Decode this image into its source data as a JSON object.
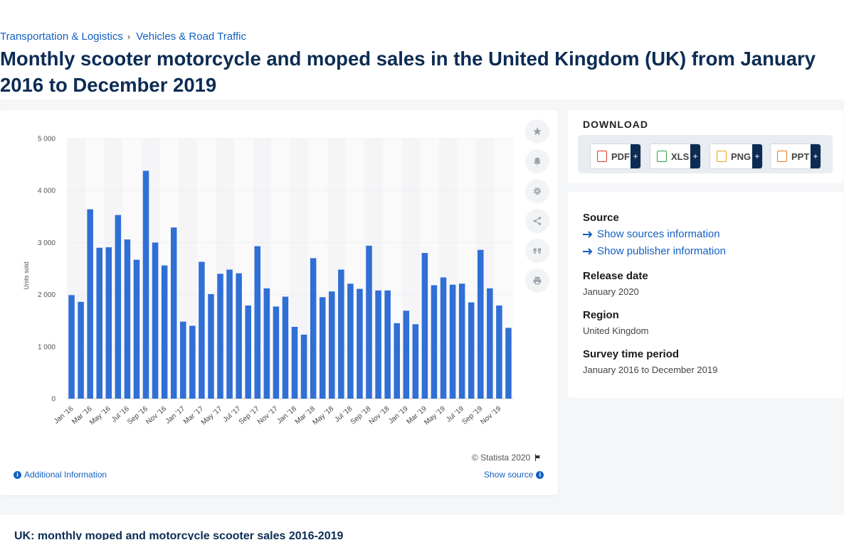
{
  "breadcrumb": {
    "items": [
      "Transportation & Logistics",
      "Vehicles & Road Traffic"
    ],
    "separator": "›"
  },
  "page": {
    "title": "Monthly scooter motorcycle and moped sales in the United Kingdom (UK) from January 2016 to December 2019"
  },
  "chart_data": {
    "type": "bar",
    "title": "",
    "ylabel": "Units sold",
    "xlabel": "",
    "ylim": [
      0,
      5000
    ],
    "yticks": [
      0,
      1000,
      2000,
      3000,
      4000,
      5000
    ],
    "ytick_labels": [
      "0",
      "1 000",
      "2 000",
      "3 000",
      "4 000",
      "5 000"
    ],
    "grid": true,
    "color": "#2f6fd6",
    "categories": [
      "Jan '16",
      "Feb '16",
      "Mar '16",
      "Apr '16",
      "May '16",
      "Jun '16",
      "Jul '16",
      "Aug '16",
      "Sep '16",
      "Oct '16",
      "Nov '16",
      "Dec '16",
      "Jan '17",
      "Feb '17",
      "Mar '17",
      "Apr '17",
      "May '17",
      "Jun '17",
      "Jul '17",
      "Aug '17",
      "Sep '17",
      "Oct '17",
      "Nov '17",
      "Dec '17",
      "Jan '18",
      "Feb '18",
      "Mar '18",
      "Apr '18",
      "May '18",
      "Jun '18",
      "Jul '18",
      "Aug '18",
      "Sep '18",
      "Oct '18",
      "Nov '18",
      "Dec '18",
      "Jan '19",
      "Feb '19",
      "Mar '19",
      "Apr '19",
      "May '19",
      "Jun '19",
      "Jul '19",
      "Aug '19",
      "Sep '19",
      "Oct '19",
      "Nov '19",
      "Dec '19"
    ],
    "tick_labels_shown": [
      "Jan '16",
      "Mar '16",
      "May '16",
      "Jul '16",
      "Sep '16",
      "Nov '16",
      "Jan '17",
      "Mar '17",
      "May '17",
      "Jul '17",
      "Sep '17",
      "Nov '17",
      "Jan '18",
      "Mar '18",
      "May '18",
      "Jul '18",
      "Sep '18",
      "Nov '18",
      "Jan '19",
      "Mar '19",
      "May '19",
      "Jul '19",
      "Sep '19",
      "Nov '19"
    ],
    "values": [
      1990,
      1860,
      3640,
      2900,
      2910,
      3530,
      3060,
      2670,
      4380,
      3000,
      2560,
      3290,
      1480,
      1400,
      2630,
      2010,
      2400,
      2480,
      2410,
      1790,
      2930,
      2120,
      1770,
      1960,
      1380,
      1230,
      2700,
      1950,
      2060,
      2480,
      2210,
      2110,
      2940,
      2080,
      2080,
      1450,
      1690,
      1430,
      2800,
      2180,
      2330,
      2190,
      2210,
      1850,
      2860,
      2120,
      1790,
      1360
    ]
  },
  "tools": {
    "icons": [
      "star-icon",
      "bell-icon",
      "gear-icon",
      "share-icon",
      "quote-icon",
      "print-icon"
    ]
  },
  "credit": "© Statista 2020",
  "links": {
    "additional_info": "Additional Information",
    "show_source": "Show source"
  },
  "download": {
    "title": "DOWNLOAD",
    "buttons": [
      {
        "label": "PDF",
        "plus": "+",
        "color": "#d93a2b"
      },
      {
        "label": "XLS",
        "plus": "+",
        "color": "#2f9e44"
      },
      {
        "label": "PNG",
        "plus": "+",
        "color": "#e3a21a"
      },
      {
        "label": "PPT",
        "plus": "+",
        "color": "#e07b1f"
      }
    ]
  },
  "info": {
    "source_heading": "Source",
    "show_sources": "Show sources information",
    "show_publisher": "Show publisher information",
    "release_heading": "Release date",
    "release_value": "January 2020",
    "region_heading": "Region",
    "region_value": "United Kingdom",
    "survey_heading": "Survey time period",
    "survey_value": "January 2016 to December 2019"
  },
  "bottom": {
    "title": "UK: monthly moped and motorcycle scooter sales 2016-2019"
  }
}
